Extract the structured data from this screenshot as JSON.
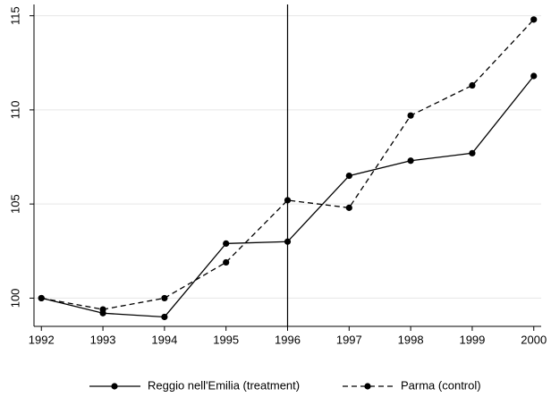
{
  "chart_data": {
    "type": "line",
    "x": [
      1992,
      1993,
      1994,
      1995,
      1996,
      1997,
      1998,
      1999,
      2000
    ],
    "series": [
      {
        "name": "Reggio nell'Emilia (treatment)",
        "color": "#000000",
        "dash": false,
        "values": [
          100,
          99.2,
          99.0,
          102.9,
          103.0,
          106.5,
          107.3,
          107.7,
          111.8
        ]
      },
      {
        "name": "Parma (control)",
        "color": "#000000",
        "dash": true,
        "values": [
          100,
          99.4,
          100.0,
          101.9,
          105.2,
          104.8,
          109.7,
          111.3,
          114.8
        ]
      }
    ],
    "xlim": [
      1991.88,
      2000.12
    ],
    "xticks": [
      1992,
      1993,
      1994,
      1995,
      1996,
      1997,
      1998,
      1999,
      2000
    ],
    "ylim": [
      98.5,
      115.6
    ],
    "yticks": [
      100,
      105,
      110,
      115
    ],
    "vline": 1996,
    "grid": true,
    "legend": "bottom"
  }
}
